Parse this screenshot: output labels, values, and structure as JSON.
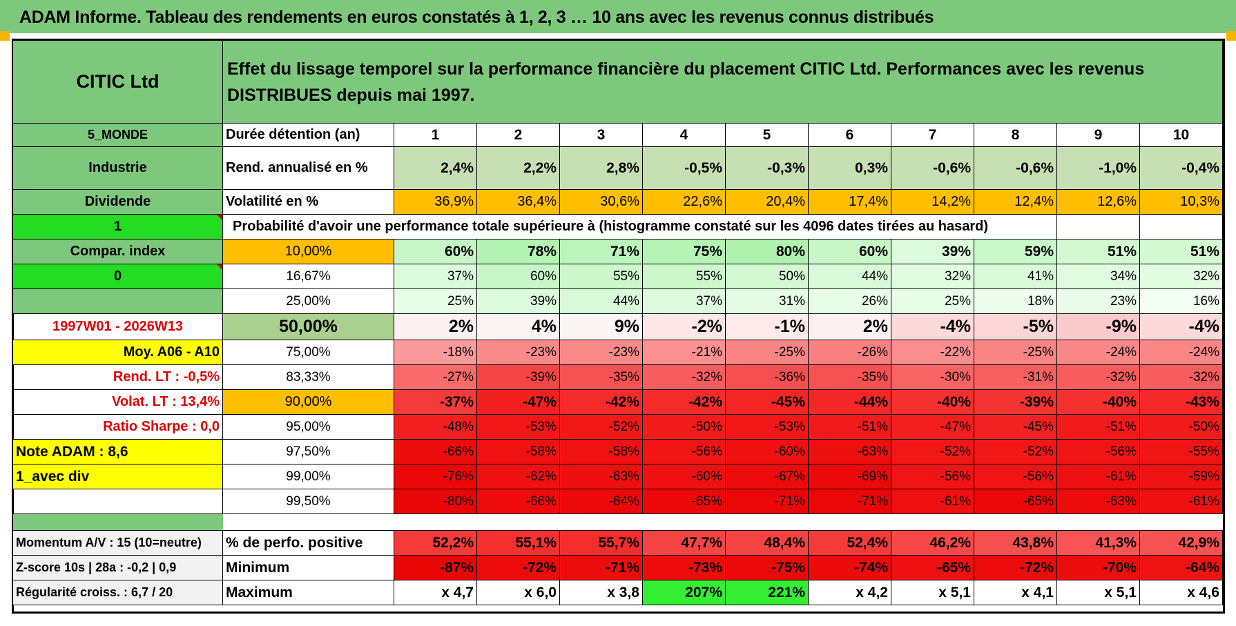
{
  "title": "ADAM Informe. Tableau des rendements en euros constatés à 1, 2, 3 … 10 ans avec les revenus connus distribués",
  "header": {
    "name": "CITIC Ltd",
    "description": "Effet du lissage temporel sur la performance financière du placement CITIC Ltd. Performances avec les revenus DISTRIBUES depuis mai 1997."
  },
  "side": {
    "zone": "5_MONDE",
    "sector": "Industrie",
    "mode": "Dividende",
    "flag1": "1",
    "compar": "Compar. index",
    "flag0": "0",
    "period": "1997W01 - 2026W13",
    "moy": "Moy. A06 - A10",
    "rend_lt": "Rend. LT :   -0,5%",
    "volat_lt": "Volat. LT :   13,4%",
    "sharpe": "Ratio Sharpe :   0,0",
    "note": "Note ADAM : 8,6",
    "avec_div": "1_avec div",
    "momentum": "Momentum A/V : 15 (10=neutre)",
    "zscore": "Z-score 10s | 28a : -0,2 | 0,9",
    "regularite": "Régularité croiss. : 6,7 / 20"
  },
  "labels": {
    "duree": "Durée détention (an)",
    "rend": "Rend. annualisé en %",
    "vol": "Volatilité en %",
    "proba": "Probabilité d'avoir une performance totale supérieure à (histogramme constaté sur les 4096 dates tirées au hasard)",
    "perfo_pos": "% de perfo. positive",
    "minimum": "Minimum",
    "maximum": "Maximum"
  },
  "years": [
    "1",
    "2",
    "3",
    "4",
    "5",
    "6",
    "7",
    "8",
    "9",
    "10"
  ],
  "rend": [
    "2,4%",
    "2,2%",
    "2,8%",
    "-0,5%",
    "-0,3%",
    "0,3%",
    "-0,6%",
    "-0,6%",
    "-1,0%",
    "-0,4%"
  ],
  "vol": [
    "36,9%",
    "36,4%",
    "30,6%",
    "22,6%",
    "20,4%",
    "17,4%",
    "14,2%",
    "12,4%",
    "12,6%",
    "10,3%"
  ],
  "quantiles": [
    {
      "q": "10,00%",
      "v": [
        "60%",
        "78%",
        "71%",
        "75%",
        "80%",
        "60%",
        "39%",
        "59%",
        "51%",
        "51%"
      ]
    },
    {
      "q": "16,67%",
      "v": [
        "37%",
        "60%",
        "55%",
        "55%",
        "50%",
        "44%",
        "32%",
        "41%",
        "34%",
        "32%"
      ]
    },
    {
      "q": "25,00%",
      "v": [
        "25%",
        "39%",
        "44%",
        "37%",
        "31%",
        "26%",
        "25%",
        "18%",
        "23%",
        "16%"
      ]
    },
    {
      "q": "50,00%",
      "v": [
        "2%",
        "4%",
        "9%",
        "-2%",
        "-1%",
        "2%",
        "-4%",
        "-5%",
        "-9%",
        "-4%"
      ]
    },
    {
      "q": "75,00%",
      "v": [
        "-18%",
        "-23%",
        "-23%",
        "-21%",
        "-25%",
        "-26%",
        "-22%",
        "-25%",
        "-24%",
        "-24%"
      ]
    },
    {
      "q": "83,33%",
      "v": [
        "-27%",
        "-39%",
        "-35%",
        "-32%",
        "-36%",
        "-35%",
        "-30%",
        "-31%",
        "-32%",
        "-32%"
      ]
    },
    {
      "q": "90,00%",
      "v": [
        "-37%",
        "-47%",
        "-42%",
        "-42%",
        "-45%",
        "-44%",
        "-40%",
        "-39%",
        "-40%",
        "-43%"
      ]
    },
    {
      "q": "95,00%",
      "v": [
        "-48%",
        "-53%",
        "-52%",
        "-50%",
        "-53%",
        "-51%",
        "-47%",
        "-45%",
        "-51%",
        "-50%"
      ]
    },
    {
      "q": "97,50%",
      "v": [
        "-66%",
        "-58%",
        "-58%",
        "-56%",
        "-60%",
        "-63%",
        "-52%",
        "-52%",
        "-56%",
        "-55%"
      ]
    },
    {
      "q": "99,00%",
      "v": [
        "-76%",
        "-62%",
        "-63%",
        "-60%",
        "-67%",
        "-69%",
        "-56%",
        "-56%",
        "-61%",
        "-59%"
      ]
    },
    {
      "q": "99,50%",
      "v": [
        "-80%",
        "-66%",
        "-64%",
        "-65%",
        "-71%",
        "-71%",
        "-61%",
        "-65%",
        "-63%",
        "-61%"
      ]
    }
  ],
  "perfo_pos": [
    "52,2%",
    "55,1%",
    "55,7%",
    "47,7%",
    "48,4%",
    "52,4%",
    "46,2%",
    "43,8%",
    "41,3%",
    "42,9%"
  ],
  "minimum": [
    "-87%",
    "-72%",
    "-71%",
    "-73%",
    "-75%",
    "-74%",
    "-65%",
    "-72%",
    "-70%",
    "-64%"
  ],
  "maximum": [
    "x 4,7",
    "x 6,0",
    "x 3,8",
    "207%",
    "221%",
    "x 4,2",
    "x 5,1",
    "x 4,1",
    "x 5,1",
    "x 4,6"
  ],
  "colors": {
    "title_bg": "#7ec87e",
    "label_bg": "#7ec87e",
    "flag_bg": "#22dd22",
    "yellow": "#ffff00",
    "orange": "#ffbf00",
    "red_text": "#e00000",
    "rend_bg": "#c6e0b4",
    "max_highlight": "#33ee33"
  },
  "quantile_bg": [
    [
      "#c7f7c7",
      "#b3f3b3",
      "#bbf5bb",
      "#b6f4b6",
      "#aef2ae",
      "#c7f7c7",
      "#dcfbdc",
      "#c9f8c9",
      "#d2f9d2",
      "#d2f9d2"
    ],
    [
      "#dcfbdc",
      "#c7f7c7",
      "#ccf8cc",
      "#ccf8cc",
      "#d2f9d2",
      "#d8fad8",
      "#e2fce2",
      "#d8fad8",
      "#e0fbe0",
      "#e2fce2"
    ],
    [
      "#e8fde8",
      "#dcfbdc",
      "#d8fad8",
      "#dffbdf",
      "#e4fce4",
      "#e8fde8",
      "#e8fde8",
      "#eefdee",
      "#eafdea",
      "#f1fef1"
    ],
    [
      "#fdf0f0",
      "#fcf3f3",
      "#fbf5f5",
      "#fde6e6",
      "#fdeaea",
      "#fdf0f0",
      "#fcdada",
      "#fcd6d6",
      "#fbcaca",
      "#fcdada"
    ],
    [
      "#fb9a9a",
      "#fa8a8a",
      "#fa8a8a",
      "#fa9090",
      "#f98484",
      "#f98080",
      "#fa8d8d",
      "#f98484",
      "#f98787",
      "#f98787"
    ],
    [
      "#f96a6a",
      "#f54545",
      "#f65252",
      "#f75d5d",
      "#f64f4f",
      "#f65252",
      "#f86464",
      "#f86060",
      "#f75d5d",
      "#f75d5d"
    ],
    [
      "#f53a3a",
      "#f32020",
      "#f42b2b",
      "#f42b2b",
      "#f32525",
      "#f32727",
      "#f43030",
      "#f43333",
      "#f43030",
      "#f42828"
    ],
    [
      "#f21f1f",
      "#f21616",
      "#f21818",
      "#f21b1b",
      "#f21616",
      "#f21a1a",
      "#f21f1f",
      "#f22222",
      "#f21a1a",
      "#f21b1b"
    ],
    [
      "#ee0d0d",
      "#f01212",
      "#f01212",
      "#f01414",
      "#ef1111",
      "#ee0f0f",
      "#f11717",
      "#f11717",
      "#f01414",
      "#f01515"
    ],
    [
      "#ec0808",
      "#ef1010",
      "#ee0f0f",
      "#ef1111",
      "#ed0b0b",
      "#ec0909",
      "#f01414",
      "#f01414",
      "#ef1111",
      "#ef1212"
    ],
    [
      "#ea0606",
      "#ed0b0b",
      "#ec0909",
      "#ec0808",
      "#eb0707",
      "#eb0707",
      "#ef1010",
      "#ec0808",
      "#ed0b0b",
      "#ef1010"
    ]
  ],
  "perfo_bg": [
    "#f53a3a",
    "#f43030",
    "#f42d2d",
    "#f54444",
    "#f54242",
    "#f53a3a",
    "#f64848",
    "#f64f4f",
    "#f75555",
    "#f65252"
  ],
  "minimum_bg": [
    "#ea0505",
    "#ed0b0b",
    "#ed0c0c",
    "#ed0b0b",
    "#ec0909",
    "#ec0a0a",
    "#ef1111",
    "#ed0b0b",
    "#ee0d0d",
    "#ef1313"
  ]
}
